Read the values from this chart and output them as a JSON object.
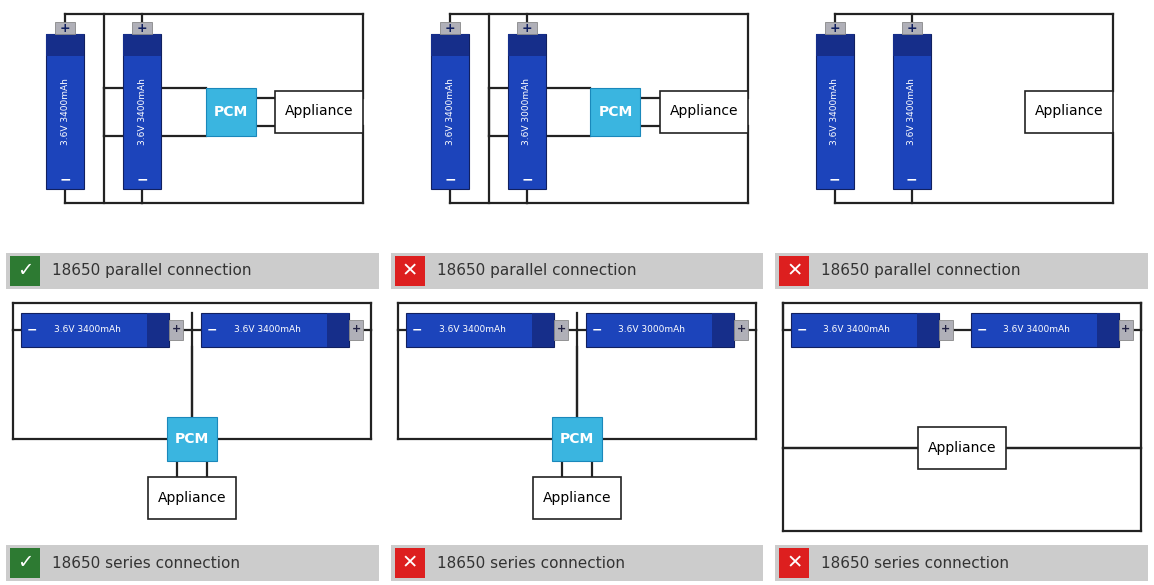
{
  "bg": "#ffffff",
  "lc": "#222222",
  "bat_blue": "#1c44bb",
  "bat_dark": "#162e8a",
  "bat_cap": "#b0b0b8",
  "pcm_color": "#3ab5e0",
  "valid_green": "#2d7a32",
  "invalid_red": "#dd1f1f",
  "label_bg": "#cccccc",
  "panels": [
    {
      "col": 0,
      "row": 0,
      "valid": true,
      "type": "parallel",
      "b1": "- 3.6V 3400mAh",
      "b2": "- 3.6V 3400mAh",
      "pcm": true,
      "label": "18650 parallel connection"
    },
    {
      "col": 1,
      "row": 0,
      "valid": false,
      "type": "parallel",
      "b1": "- 3.6V 3400mAh",
      "b2": "- 3.6V 3000mAh",
      "pcm": true,
      "label": "18650 parallel connection"
    },
    {
      "col": 2,
      "row": 0,
      "valid": false,
      "type": "parallel",
      "b1": "- 3.6V 3400mAh",
      "b2": "- 3.6V 3400mAh",
      "pcm": false,
      "label": "18650 parallel connection"
    },
    {
      "col": 0,
      "row": 1,
      "valid": true,
      "type": "series",
      "b1": "- 3.6V 3400mAh",
      "b2": "- 3.6V 3400mAh",
      "pcm": true,
      "label": "18650 series connection"
    },
    {
      "col": 1,
      "row": 1,
      "valid": false,
      "type": "series",
      "b1": "- 3.6V 3400mAh",
      "b2": "- 3.6V 3000mAh",
      "pcm": true,
      "label": "18650 series connection"
    },
    {
      "col": 2,
      "row": 1,
      "valid": false,
      "type": "series",
      "b1": "- 3.6V 3400mAh",
      "b2": "- 3.6V 3400mAh",
      "pcm": false,
      "label": "18650 series connection"
    }
  ]
}
